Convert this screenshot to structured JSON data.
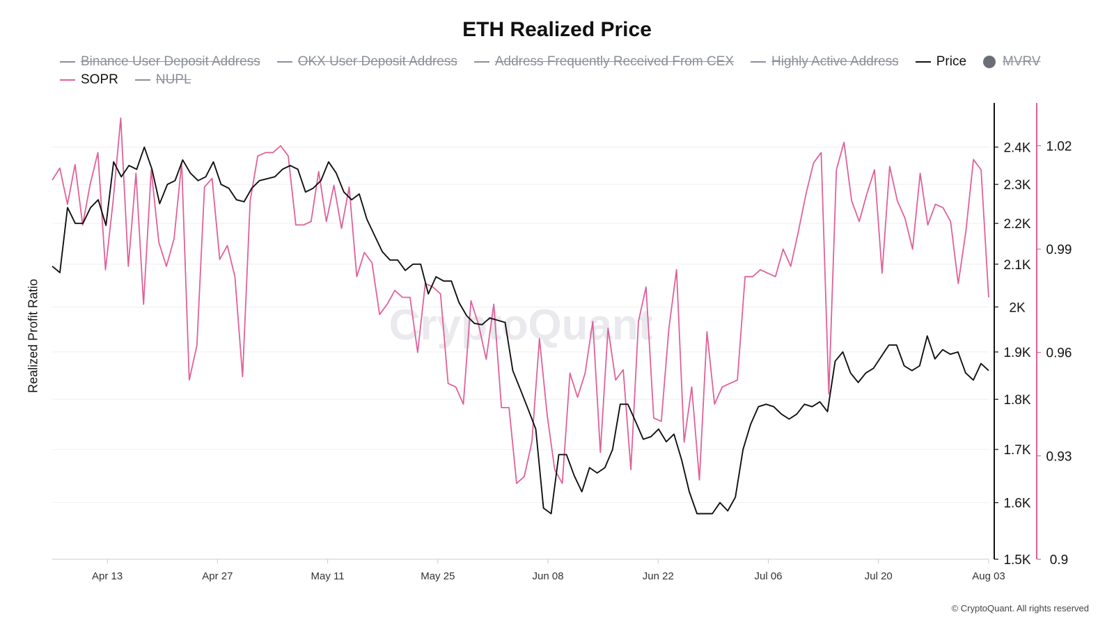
{
  "chart_data": {
    "type": "line",
    "title": "ETH Realized Price",
    "ylabel_left": "Realized Profit Ratio",
    "watermark": "CryptoQuant",
    "footer": "© CryptoQuant. All rights reserved",
    "legend_position": "top",
    "grid": true,
    "legend": [
      {
        "name": "Binance User Deposit Address",
        "active": false,
        "shape": "line",
        "color": "#8a8f98"
      },
      {
        "name": "OKX User Deposit Address",
        "active": false,
        "shape": "line",
        "color": "#8a8f98"
      },
      {
        "name": "Address Frequently Received From CEX",
        "active": false,
        "shape": "line",
        "color": "#8a8f98"
      },
      {
        "name": "Highly Active Address",
        "active": false,
        "shape": "line",
        "color": "#8a8f98"
      },
      {
        "name": "Price",
        "active": true,
        "shape": "line",
        "color": "#111111"
      },
      {
        "name": "MVRV",
        "active": false,
        "shape": "dot",
        "color": "#6b6e78"
      },
      {
        "name": "SOPR",
        "active": true,
        "shape": "line",
        "color": "#e0609a"
      },
      {
        "name": "NUPL",
        "active": false,
        "shape": "line",
        "color": "#8a8f98"
      }
    ],
    "x_axis": {
      "start": "2023-04-06",
      "end": "2023-08-03",
      "ticks": [
        "Apr 13",
        "Apr 27",
        "May 11",
        "May 25",
        "Jun 08",
        "Jun 22",
        "Jul 06",
        "Jul 20",
        "Aug 03"
      ],
      "tick_dates": [
        "2023-04-13",
        "2023-04-27",
        "2023-05-11",
        "2023-05-25",
        "2023-06-08",
        "2023-06-22",
        "2023-07-06",
        "2023-07-20",
        "2023-08-03"
      ]
    },
    "y_axis_price": {
      "scale": "log",
      "range": [
        1500,
        2500
      ],
      "ticks": [
        1500,
        1600,
        1700,
        1800,
        1900,
        2000,
        2100,
        2200,
        2300,
        2400
      ],
      "tick_labels": [
        "1.5K",
        "1.6K",
        "1.7K",
        "1.8K",
        "1.9K",
        "2K",
        "2.1K",
        "2.2K",
        "2.3K",
        "2.4K"
      ],
      "color": "#111111"
    },
    "y_axis_sopr": {
      "range": [
        0.9,
        1.032
      ],
      "ticks": [
        0.9,
        0.93,
        0.96,
        0.99,
        1.02
      ],
      "tick_labels": [
        "0.9",
        "0.93",
        "0.96",
        "0.99",
        "1.02"
      ],
      "color": "#e0609a"
    },
    "series": [
      {
        "name": "Price",
        "color": "#111111",
        "axis": "price",
        "values": [
          2095,
          2080,
          2240,
          2200,
          2200,
          2240,
          2260,
          2195,
          2360,
          2320,
          2350,
          2340,
          2400,
          2340,
          2250,
          2300,
          2310,
          2365,
          2330,
          2310,
          2320,
          2360,
          2300,
          2290,
          2260,
          2255,
          2290,
          2310,
          2315,
          2320,
          2340,
          2350,
          2340,
          2280,
          2290,
          2310,
          2360,
          2330,
          2280,
          2260,
          2275,
          2210,
          2170,
          2130,
          2110,
          2110,
          2085,
          2100,
          2100,
          2030,
          2070,
          2060,
          2060,
          2010,
          1980,
          1963,
          1960,
          1975,
          1970,
          1965,
          1860,
          1820,
          1780,
          1740,
          1590,
          1580,
          1690,
          1690,
          1650,
          1620,
          1665,
          1655,
          1665,
          1700,
          1790,
          1790,
          1755,
          1720,
          1725,
          1740,
          1715,
          1730,
          1680,
          1620,
          1580,
          1580,
          1580,
          1600,
          1585,
          1610,
          1700,
          1750,
          1785,
          1790,
          1785,
          1770,
          1760,
          1770,
          1790,
          1785,
          1795,
          1775,
          1880,
          1900,
          1855,
          1835,
          1855,
          1865,
          1890,
          1915,
          1915,
          1870,
          1860,
          1870,
          1935,
          1885,
          1905,
          1895,
          1900,
          1855,
          1840,
          1875,
          1860
        ]
      },
      {
        "name": "SOPR",
        "color": "#e0609a",
        "axis": "sopr",
        "values": [
          1.01,
          1.0135,
          1.003,
          1.0145,
          0.997,
          1.009,
          1.018,
          0.984,
          1.004,
          1.028,
          0.985,
          1.012,
          0.974,
          1.013,
          0.992,
          0.985,
          0.993,
          1.015,
          0.952,
          0.962,
          1.008,
          1.0105,
          0.987,
          0.991,
          0.982,
          0.953,
          1.004,
          1.017,
          1.018,
          1.018,
          1.02,
          1.017,
          0.997,
          0.997,
          0.998,
          1.0125,
          0.998,
          1.0085,
          0.996,
          1.008,
          0.982,
          0.989,
          0.986,
          0.971,
          0.974,
          0.978,
          0.976,
          0.976,
          0.96,
          0.98,
          0.979,
          0.977,
          0.951,
          0.95,
          0.945,
          0.975,
          0.968,
          0.958,
          0.974,
          0.944,
          0.944,
          0.922,
          0.924,
          0.934,
          0.964,
          0.942,
          0.926,
          0.922,
          0.954,
          0.947,
          0.954,
          0.969,
          0.931,
          0.967,
          0.952,
          0.955,
          0.926,
          0.969,
          0.979,
          0.941,
          0.94,
          0.967,
          0.984,
          0.934,
          0.95,
          0.923,
          0.966,
          0.945,
          0.95,
          0.951,
          0.952,
          0.982,
          0.982,
          0.984,
          0.983,
          0.982,
          0.99,
          0.985,
          0.995,
          1.006,
          1.015,
          1.018,
          0.948,
          1.013,
          1.021,
          1.004,
          0.998,
          1.006,
          1.013,
          0.983,
          1.014,
          1.004,
          0.999,
          0.99,
          1.012,
          0.997,
          1.003,
          1.002,
          0.998,
          0.98,
          0.995,
          1.016,
          1.013,
          0.976
        ]
      }
    ]
  }
}
